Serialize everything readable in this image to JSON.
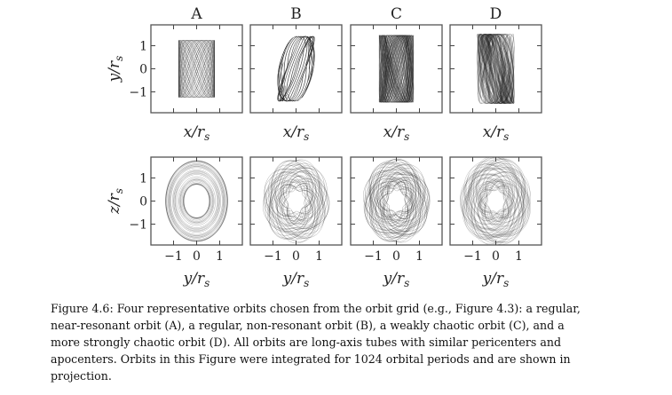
{
  "figure": {
    "panels": [
      {
        "id": "A",
        "title": "A"
      },
      {
        "id": "B",
        "title": "B"
      },
      {
        "id": "C",
        "title": "C"
      },
      {
        "id": "D",
        "title": "D"
      }
    ],
    "top_row": {
      "xlabel": {
        "main": "x/r",
        "sub": "s"
      },
      "ylabel": {
        "main": "y/r",
        "sub": "s"
      },
      "yticks": [
        "1",
        "0",
        "−1"
      ]
    },
    "bottom_row": {
      "xlabel": {
        "main": "y/r",
        "sub": "s"
      },
      "ylabel": {
        "main": "z/r",
        "sub": "s"
      },
      "yticks": [
        "1",
        "0",
        "−1"
      ],
      "xticks": [
        "−1",
        "0",
        "1"
      ]
    },
    "line_color": "#222222"
  },
  "caption": {
    "lines": [
      "Figure 4.6: Four representative orbits chosen from the orbit grid (e.g., Figure 4.3): a regular,",
      "near-resonant orbit (A), a regular, non-resonant orbit (B), a weakly chaotic orbit (C), and a",
      "more strongly chaotic orbit (D). All orbits are long-axis tubes with similar pericenters and",
      "apocenters. Orbits in this Figure were integrated for 1024 orbital periods and are shown in",
      "projection."
    ]
  }
}
